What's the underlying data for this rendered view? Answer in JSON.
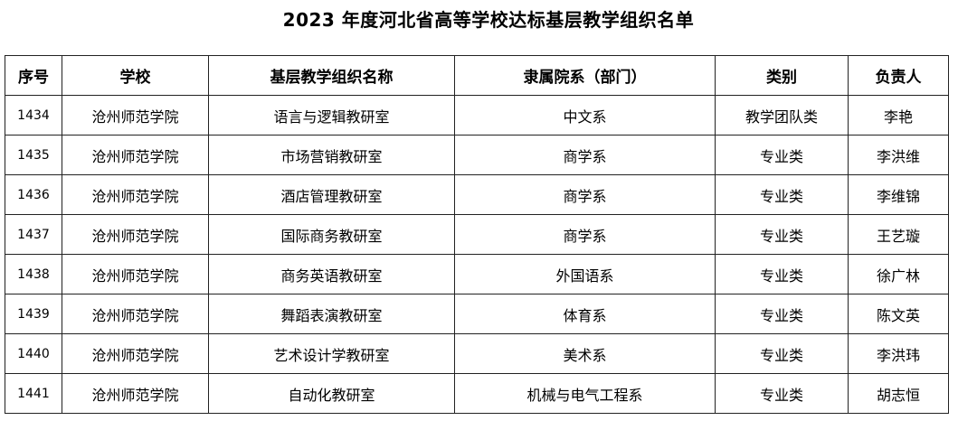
{
  "title": "2023 年度河北省高等学校达标基层教学组织名单",
  "headers": [
    "序号",
    "学校",
    "基层教学组织名称",
    "隶属院系（部门）",
    "类别",
    "负责人"
  ],
  "rows": [
    [
      "1434",
      "沧州师范学院",
      "语言与逻辑教研室",
      "中文系",
      "教学团队类",
      "李艳"
    ],
    [
      "1435",
      "沧州师范学院",
      "市场营销教研室",
      "商学系",
      "专业类",
      "李洪维"
    ],
    [
      "1436",
      "沧州师范学院",
      "酒店管理教研室",
      "商学系",
      "专业类",
      "李维锦"
    ],
    [
      "1437",
      "沧州师范学院",
      "国际商务教研室",
      "商学系",
      "专业类",
      "王艺璇"
    ],
    [
      "1438",
      "沧州师范学院",
      "商务英语教研室",
      "外国语系",
      "专业类",
      "徐广林"
    ],
    [
      "1439",
      "沧州师范学院",
      "舞蹈表演教研室",
      "体育系",
      "专业类",
      "陈文英"
    ],
    [
      "1440",
      "沧州师范学院",
      "艺术设计学教研室",
      "美术系",
      "专业类",
      "李洪玮"
    ],
    [
      "1441",
      "沧州师范学院",
      "自动化教研室",
      "机械与电气工程系",
      "专业类",
      "胡志恒"
    ]
  ]
}
